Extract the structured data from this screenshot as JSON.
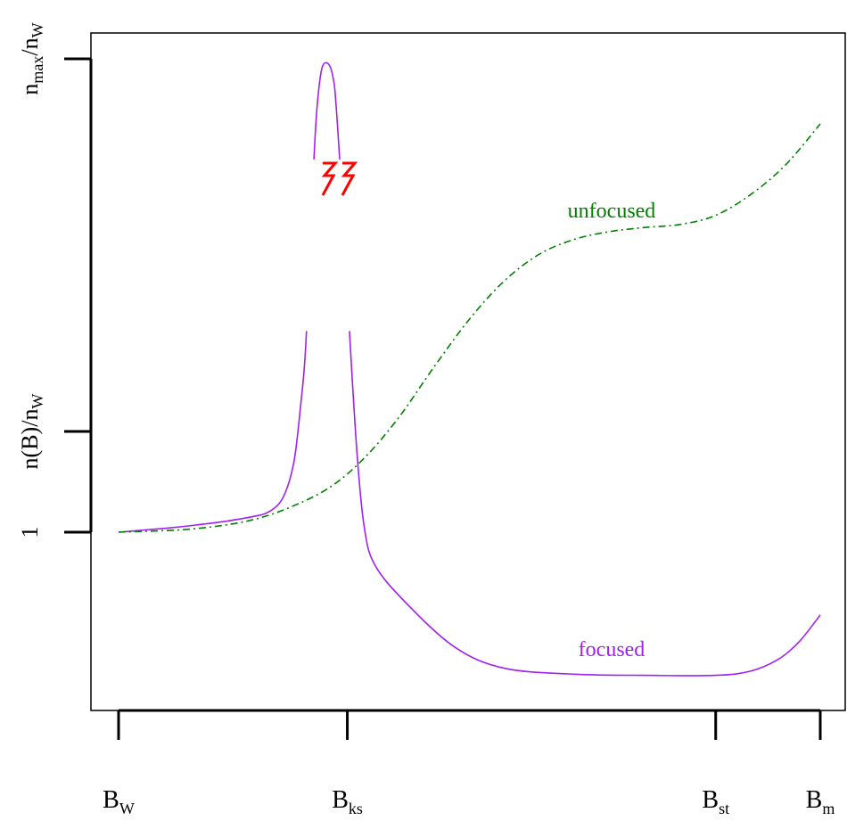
{
  "chart_data": {
    "type": "line",
    "title": "",
    "xlabel": "",
    "ylabel": "",
    "x_ticks": [
      {
        "main": "B",
        "sub": "W"
      },
      {
        "main": "B",
        "sub": "ks"
      },
      {
        "main": "B",
        "sub": "st"
      },
      {
        "main": "B",
        "sub": "m"
      }
    ],
    "y_ticks": [
      {
        "label": "1"
      },
      {
        "label": "n(B)/n",
        "sub": "W"
      },
      {
        "label": "n",
        "sub": "max",
        "tail": "/n",
        "tail_sub": "W"
      }
    ],
    "series": [
      {
        "name": "focused",
        "color": "#a020f0",
        "style": "solid",
        "points": [
          [
            0.0,
            1.0
          ],
          [
            0.03,
            1.03
          ],
          [
            0.07,
            1.07
          ],
          [
            0.11,
            1.12
          ],
          [
            0.15,
            1.18
          ],
          [
            0.19,
            1.26
          ],
          [
            0.215,
            1.35
          ],
          [
            0.235,
            1.6
          ],
          [
            0.25,
            2.2
          ],
          [
            0.26,
            3.2
          ],
          [
            0.266,
            4.0
          ],
          [
            0.272,
            5.5
          ],
          [
            0.278,
            7.2
          ],
          [
            0.283,
            8.2
          ],
          [
            0.29,
            8.85
          ],
          [
            0.3,
            8.9
          ],
          [
            0.307,
            8.6
          ],
          [
            0.31,
            8.2
          ],
          [
            0.313,
            7.7
          ],
          [
            0.32,
            6.4
          ],
          [
            0.33,
            4.2
          ],
          [
            0.34,
            2.3
          ],
          [
            0.35,
            1.1
          ],
          [
            0.365,
            0.45
          ],
          [
            0.41,
            -0.2
          ],
          [
            0.48,
            -0.95
          ],
          [
            0.55,
            -1.3
          ],
          [
            0.65,
            -1.4
          ],
          [
            0.75,
            -1.42
          ],
          [
            0.85,
            -1.42
          ],
          [
            0.9,
            -1.35
          ],
          [
            0.94,
            -1.15
          ],
          [
            0.97,
            -0.85
          ],
          [
            1.0,
            -0.4
          ]
        ],
        "gap": [
          7.3,
          4.4
        ]
      },
      {
        "name": "unfocused",
        "color": "#008000",
        "style": "dashdot",
        "points": [
          [
            0.0,
            1.0
          ],
          [
            0.1,
            1.05
          ],
          [
            0.18,
            1.18
          ],
          [
            0.24,
            1.4
          ],
          [
            0.3,
            1.75
          ],
          [
            0.35,
            2.25
          ],
          [
            0.4,
            2.95
          ],
          [
            0.45,
            3.8
          ],
          [
            0.5,
            4.6
          ],
          [
            0.55,
            5.25
          ],
          [
            0.6,
            5.7
          ],
          [
            0.65,
            5.95
          ],
          [
            0.7,
            6.08
          ],
          [
            0.75,
            6.15
          ],
          [
            0.8,
            6.2
          ],
          [
            0.85,
            6.35
          ],
          [
            0.9,
            6.7
          ],
          [
            0.95,
            7.2
          ],
          [
            1.0,
            7.9
          ]
        ]
      }
    ],
    "annotation": "lightning-symbol"
  }
}
